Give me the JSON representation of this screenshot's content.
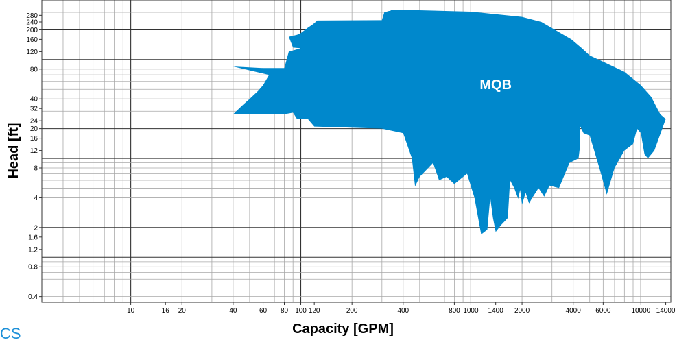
{
  "chart_data": {
    "type": "area",
    "title": "",
    "xlabel": "Capacity [GPM]",
    "ylabel": "Head [ft]",
    "x_scale": "log",
    "y_scale": "log",
    "xlim": [
      3,
      15000
    ],
    "ylim": [
      0.35,
      400
    ],
    "grid": true,
    "x_ticks": [
      10,
      16,
      20,
      40,
      60,
      80,
      100,
      120,
      200,
      400,
      800,
      1000,
      1400,
      2000,
      4000,
      6000,
      10000,
      14000
    ],
    "y_ticks": [
      0.4,
      0.8,
      1.2,
      1.6,
      2,
      4,
      8,
      12,
      16,
      20,
      24,
      32,
      40,
      80,
      120,
      160,
      200,
      240,
      280
    ],
    "region_color": "#0088cc",
    "series": [
      {
        "name": "MQB",
        "polygon": [
          [
            335,
            310
          ],
          [
            344,
            320
          ],
          [
            1000,
            305
          ],
          [
            2000,
            270
          ],
          [
            2600,
            240
          ],
          [
            3200,
            195
          ],
          [
            3900,
            160
          ],
          [
            4500,
            130
          ],
          [
            5000,
            110
          ],
          [
            6000,
            95
          ],
          [
            8000,
            75
          ],
          [
            10000,
            55
          ],
          [
            11500,
            42
          ],
          [
            13000,
            28
          ],
          [
            14000,
            25
          ],
          [
            12000,
            12
          ],
          [
            11000,
            10
          ],
          [
            10500,
            11
          ],
          [
            10000,
            18
          ],
          [
            9500,
            20
          ],
          [
            9000,
            14
          ],
          [
            8000,
            12
          ],
          [
            7000,
            8
          ],
          [
            6300,
            4.3
          ],
          [
            5700,
            8
          ],
          [
            5000,
            17
          ],
          [
            4600,
            18
          ],
          [
            4400,
            21
          ],
          [
            4400,
            14
          ],
          [
            4300,
            10
          ],
          [
            3800,
            9
          ],
          [
            3300,
            5
          ],
          [
            2900,
            5.3
          ],
          [
            2700,
            4.1
          ],
          [
            2500,
            5
          ],
          [
            2300,
            4
          ],
          [
            2200,
            3.5
          ],
          [
            2100,
            4.5
          ],
          [
            2000,
            3.4
          ],
          [
            1950,
            4.8
          ],
          [
            1900,
            3.9
          ],
          [
            1800,
            5
          ],
          [
            1700,
            6
          ],
          [
            1650,
            2.5
          ],
          [
            1500,
            2.1
          ],
          [
            1400,
            1.8
          ],
          [
            1350,
            2.5
          ],
          [
            1300,
            4
          ],
          [
            1250,
            1.9
          ],
          [
            1150,
            1.7
          ],
          [
            1050,
            4
          ],
          [
            950,
            7
          ],
          [
            800,
            5.5
          ],
          [
            720,
            6.5
          ],
          [
            650,
            6
          ],
          [
            600,
            9
          ],
          [
            500,
            6.5
          ],
          [
            470,
            5.2
          ],
          [
            450,
            10
          ],
          [
            400,
            18
          ],
          [
            300,
            20
          ],
          [
            120,
            21
          ],
          [
            110,
            25
          ],
          [
            95,
            25
          ],
          [
            90,
            29
          ],
          [
            80,
            28
          ],
          [
            40,
            28
          ],
          [
            45,
            34
          ],
          [
            50,
            40
          ],
          [
            56,
            48
          ],
          [
            60,
            55
          ],
          [
            65,
            70
          ],
          [
            40,
            85
          ],
          [
            60,
            82
          ],
          [
            80,
            82
          ],
          [
            85,
            120
          ],
          [
            100,
            130
          ],
          [
            90,
            132
          ],
          [
            85,
            170
          ],
          [
            95,
            178
          ],
          [
            100,
            185
          ],
          [
            110,
            210
          ],
          [
            118,
            228
          ],
          [
            125,
            248
          ],
          [
            300,
            250
          ],
          [
            310,
            300
          ],
          [
            330,
            310
          ]
        ]
      }
    ],
    "annotations": [
      "MQB"
    ]
  },
  "corner_text": "CS"
}
